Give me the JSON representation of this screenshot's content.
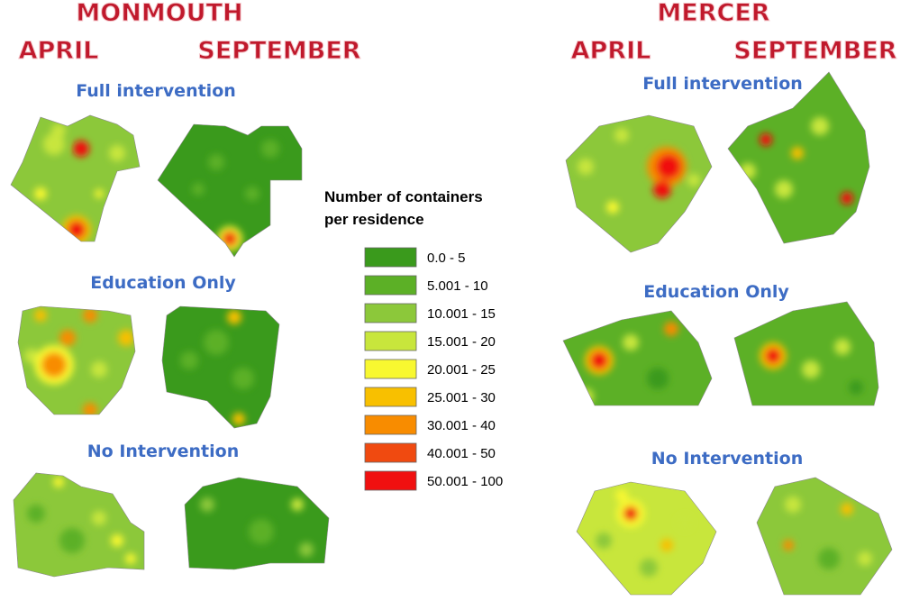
{
  "counties": [
    {
      "name": "MONMOUTH",
      "months": [
        "APRIL",
        "SEPTEMBER"
      ],
      "panels": [
        "Full intervention",
        "Education Only",
        "No Intervention"
      ]
    },
    {
      "name": "MERCER",
      "months": [
        "APRIL",
        "SEPTEMBER"
      ],
      "panels": [
        "Full intervention",
        "Education Only",
        "No Intervention"
      ]
    }
  ],
  "legend": {
    "title_lines": [
      "Number of containers",
      "per residence"
    ],
    "items": [
      {
        "label": "0.0 - 5",
        "color": "#3a9a1c"
      },
      {
        "label": "5.001 - 10",
        "color": "#5cb026"
      },
      {
        "label": "10.001 - 15",
        "color": "#8cc83a"
      },
      {
        "label": "15.001 - 20",
        "color": "#c8e63c"
      },
      {
        "label": "20.001 - 25",
        "color": "#f8f830"
      },
      {
        "label": "25.001 - 30",
        "color": "#f8c000"
      },
      {
        "label": "30.001 - 40",
        "color": "#f88c00"
      },
      {
        "label": "40.001 - 50",
        "color": "#f04a10"
      },
      {
        "label": "50.001 - 100",
        "color": "#f01010"
      }
    ]
  }
}
